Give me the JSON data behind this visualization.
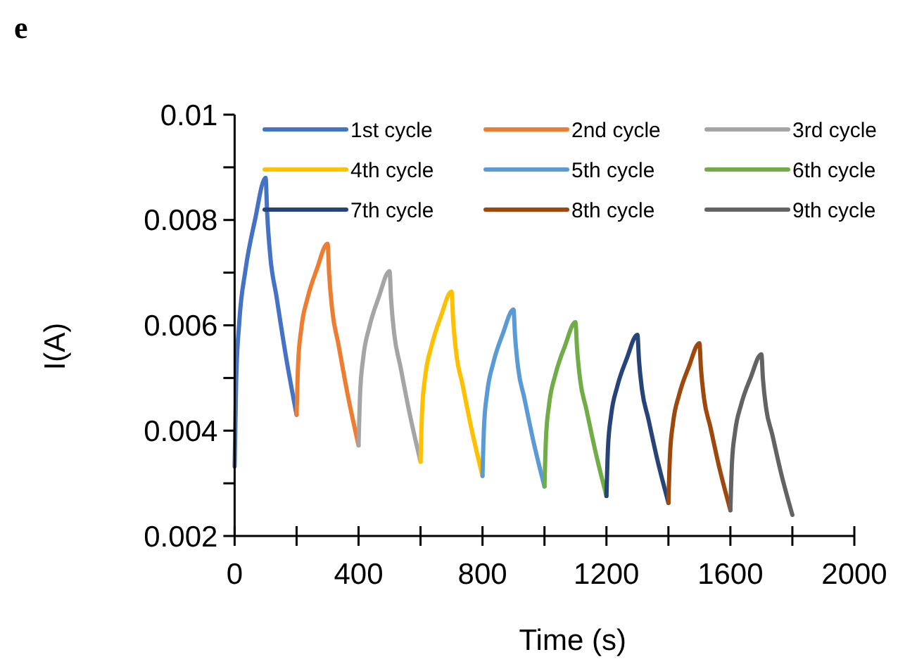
{
  "chart_data": {
    "type": "line",
    "title": "e",
    "xlabel": "Time (s)",
    "ylabel": "I(A)",
    "xlim": [
      0,
      2000
    ],
    "ylim": [
      0.002,
      0.01
    ],
    "xticks": [
      0,
      {
        "value": 200,
        "label": null
      },
      400,
      {
        "value": 600,
        "label": null
      },
      800,
      {
        "value": 1000,
        "label": null
      },
      1200,
      {
        "value": 1400,
        "label": null
      },
      1600,
      {
        "value": 1800,
        "label": null
      },
      2000
    ],
    "yticks": [
      0.002,
      {
        "value": 0.003,
        "label": null
      },
      0.004,
      {
        "value": 0.005,
        "label": null
      },
      0.006,
      {
        "value": 0.007,
        "label": null
      },
      0.008,
      {
        "value": 0.009,
        "label": null
      },
      0.01
    ],
    "grid": false,
    "legend": "top",
    "marker": "none",
    "line_style": "solid",
    "series": [
      {
        "name": "1st cycle",
        "color": "#4472c4",
        "x": [
          0,
          5,
          15,
          35,
          65,
          100,
          105,
          115,
          135,
          165,
          200
        ],
        "values": [
          0.00332,
          0.00496,
          0.00606,
          0.00705,
          0.00798,
          0.0088,
          0.00813,
          0.00732,
          0.00655,
          0.00543,
          0.0043
        ]
      },
      {
        "name": "2nd cycle",
        "color": "#ed7d31",
        "x": [
          200,
          205,
          215,
          235,
          265,
          300,
          305,
          315,
          335,
          365,
          400
        ],
        "values": [
          0.0043,
          0.00528,
          0.00593,
          0.00651,
          0.00706,
          0.00755,
          0.00698,
          0.00629,
          0.00564,
          0.00468,
          0.00372
        ]
      },
      {
        "name": "3rd cycle",
        "color": "#a5a5a5",
        "x": [
          400,
          405,
          415,
          435,
          465,
          500,
          505,
          515,
          535,
          565,
          600
        ],
        "values": [
          0.00372,
          0.00471,
          0.00538,
          0.00597,
          0.00653,
          0.00703,
          0.00649,
          0.00584,
          0.00522,
          0.00432,
          0.00341
        ]
      },
      {
        "name": "4th cycle",
        "color": "#ffc000",
        "x": [
          600,
          605,
          615,
          635,
          665,
          700,
          705,
          715,
          735,
          765,
          800
        ],
        "values": [
          0.00341,
          0.00438,
          0.00503,
          0.0056,
          0.00616,
          0.00664,
          0.00612,
          0.00548,
          0.00489,
          0.00402,
          0.00314
        ]
      },
      {
        "name": "5th cycle",
        "color": "#5b9bd5",
        "x": [
          800,
          805,
          815,
          835,
          865,
          900,
          905,
          915,
          935,
          965,
          1000
        ],
        "values": [
          0.00314,
          0.00409,
          0.00472,
          0.00529,
          0.00583,
          0.0063,
          0.0058,
          0.00519,
          0.00462,
          0.00378,
          0.00294
        ]
      },
      {
        "name": "6th cycle",
        "color": "#70ad47",
        "x": [
          1000,
          1005,
          1015,
          1035,
          1065,
          1100,
          1105,
          1115,
          1135,
          1165,
          1200
        ],
        "values": [
          0.00294,
          0.00388,
          0.0045,
          0.00506,
          0.00559,
          0.00606,
          0.00557,
          0.00497,
          0.00441,
          0.00359,
          0.00276
        ]
      },
      {
        "name": "7th cycle",
        "color": "#264478",
        "x": [
          1200,
          1205,
          1215,
          1235,
          1265,
          1300,
          1305,
          1315,
          1335,
          1365,
          1400
        ],
        "values": [
          0.00276,
          0.00368,
          0.00429,
          0.00484,
          0.00536,
          0.00582,
          0.00534,
          0.00477,
          0.00423,
          0.00343,
          0.00263
        ]
      },
      {
        "name": "8th cycle",
        "color": "#9e480e",
        "x": [
          1400,
          1405,
          1415,
          1435,
          1465,
          1500,
          1505,
          1515,
          1535,
          1565,
          1600
        ],
        "values": [
          0.00263,
          0.00354,
          0.00415,
          0.00469,
          0.0052,
          0.00566,
          0.00518,
          0.00461,
          0.00408,
          0.00328,
          0.00249
        ]
      },
      {
        "name": "9th cycle",
        "color": "#636363",
        "x": [
          1600,
          1605,
          1615,
          1635,
          1665,
          1700,
          1705,
          1715,
          1735,
          1765,
          1800
        ],
        "values": [
          0.00249,
          0.00338,
          0.00397,
          0.0045,
          0.005,
          0.00545,
          0.00499,
          0.00444,
          0.00393,
          0.00316,
          0.0024
        ]
      }
    ]
  }
}
